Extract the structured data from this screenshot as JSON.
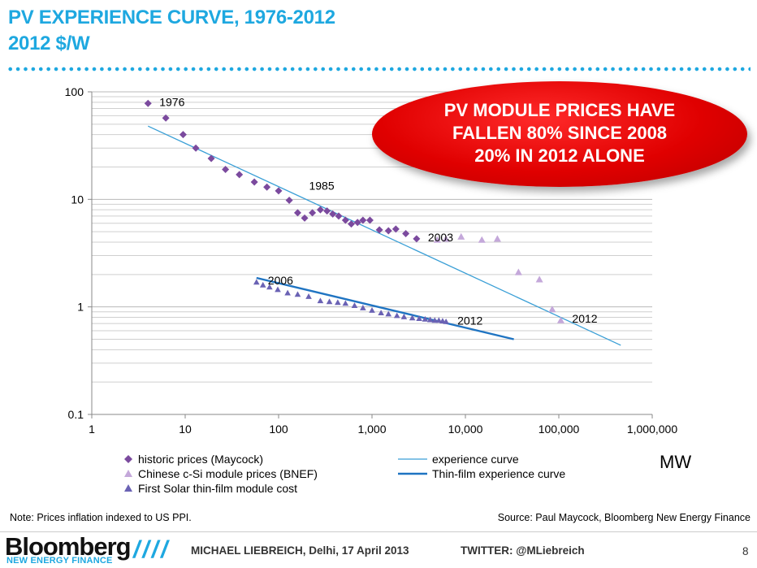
{
  "slide": {
    "title_line1": "PV EXPERIENCE CURVE, 1976-2012",
    "title_line2": "2012 $/W",
    "callout_line1": "PV MODULE PRICES HAVE",
    "callout_line2": "FALLEN 80% SINCE 2008",
    "callout_line3": "20% IN 2012 ALONE",
    "unit_label": "MW",
    "note": "Note: Prices inflation indexed to US PPI.",
    "source": "Source: Paul Maycock, Bloomberg New Energy Finance",
    "logo_main": "Bloomberg",
    "logo_sub": "NEW ENERGY FINANCE",
    "slashes": "////",
    "author": "MICHAEL LIEBREICH, Delhi, 17 April 2013",
    "twitter": "TWITTER: @MLiebreich",
    "page_number": "8"
  },
  "chart_data": {
    "type": "scatter",
    "xscale": "log",
    "yscale": "log",
    "xlim": [
      1,
      1000000
    ],
    "ylim": [
      0.1,
      100
    ],
    "xticks": [
      "1",
      "10",
      "100",
      "1,000",
      "10,000",
      "100,000",
      "1,000,000"
    ],
    "yticks": [
      "0.1",
      "1",
      "10",
      "100"
    ],
    "xlabel": "MW",
    "colors": {
      "historic": "#7b4a9e",
      "chinese": "#c4a8da",
      "firstsolar": "#6a62b4",
      "exp": "#3a9fd6",
      "thin": "#1f74c2"
    },
    "annotations": [
      {
        "text": "1976",
        "x": 4,
        "y": 78
      },
      {
        "text": "1985",
        "x": 160,
        "y": 13
      },
      {
        "text": "2003",
        "x": 3000,
        "y": 4.3
      },
      {
        "text": "2006",
        "x": 58,
        "y": 1.7
      },
      {
        "text": "2012",
        "x": 6200,
        "y": 0.72
      },
      {
        "text": "2012",
        "x": 105000,
        "y": 0.75
      }
    ],
    "series": [
      {
        "name": "historic prices (Maycock)",
        "marker": "diamond",
        "x": [
          4,
          6.2,
          9.5,
          13,
          19,
          27,
          38,
          55,
          75,
          100,
          130,
          160,
          190,
          230,
          280,
          330,
          380,
          440,
          520,
          600,
          700,
          800,
          950,
          1200,
          1500,
          1800,
          2300,
          3000
        ],
        "y": [
          78,
          57,
          40,
          30,
          24,
          19,
          17,
          14.5,
          13,
          12,
          9.8,
          7.5,
          6.7,
          7.5,
          8,
          7.8,
          7.3,
          7,
          6.4,
          5.9,
          6.1,
          6.4,
          6.4,
          5.2,
          5.1,
          5.3,
          4.8,
          4.3
        ]
      },
      {
        "name": "Chinese c-Si module prices (BNEF)",
        "marker": "triangle",
        "x": [
          5000,
          6200,
          9000,
          15000,
          22000,
          37000,
          62000,
          85000,
          105000
        ],
        "y": [
          4.2,
          4.3,
          4.5,
          4.2,
          4.3,
          2.1,
          1.8,
          0.95,
          0.75
        ]
      },
      {
        "name": "First Solar thin-film module cost",
        "marker": "triangle",
        "x": [
          58,
          68,
          80,
          98,
          125,
          160,
          210,
          280,
          350,
          430,
          520,
          650,
          800,
          1000,
          1250,
          1500,
          1850,
          2200,
          2700,
          3200,
          3700,
          4200,
          4700,
          5200,
          5700,
          6200
        ],
        "y": [
          1.7,
          1.6,
          1.53,
          1.45,
          1.35,
          1.31,
          1.25,
          1.14,
          1.12,
          1.1,
          1.08,
          1.03,
          0.98,
          0.93,
          0.88,
          0.86,
          0.83,
          0.81,
          0.79,
          0.78,
          0.77,
          0.76,
          0.75,
          0.75,
          0.74,
          0.73
        ]
      },
      {
        "name": "experience curve",
        "marker": "line",
        "x": [
          4,
          460000
        ],
        "y": [
          48,
          0.44
        ]
      },
      {
        "name": "Thin-film experience curve",
        "marker": "line",
        "x": [
          58,
          33000
        ],
        "y": [
          1.86,
          0.5
        ]
      }
    ]
  }
}
